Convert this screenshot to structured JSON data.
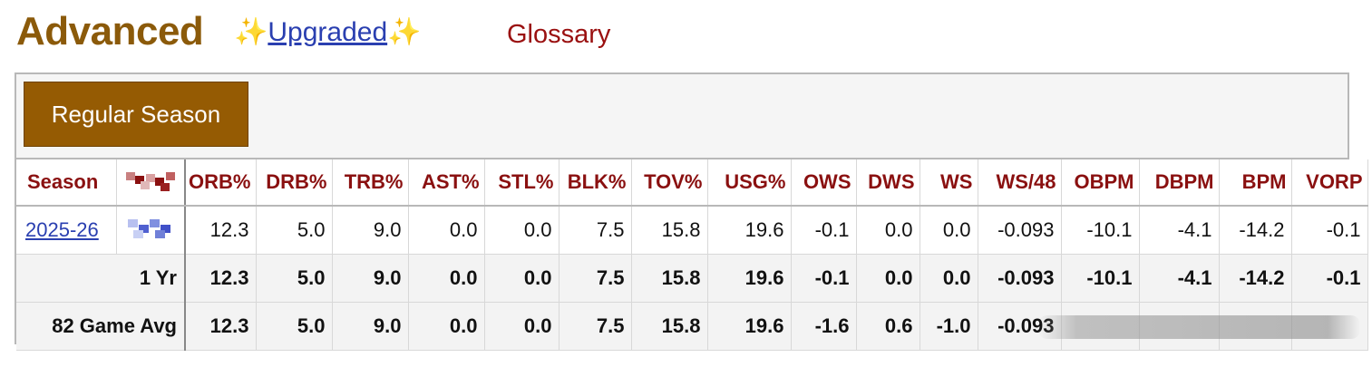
{
  "header": {
    "title": "Advanced",
    "spark_left": "✨",
    "upgraded_link": "Upgraded",
    "spark_right": "✨",
    "glossary": "Glossary"
  },
  "toolbar": {
    "regular_season_label": "Regular Season"
  },
  "table": {
    "columns": [
      "Season",
      "",
      "ORB%",
      "DRB%",
      "TRB%",
      "AST%",
      "STL%",
      "BLK%",
      "TOV%",
      "USG%",
      "OWS",
      "DWS",
      "WS",
      "WS/48",
      "OBPM",
      "DBPM",
      "BPM",
      "VORP"
    ],
    "rows": [
      {
        "season": "2025-26",
        "age": "",
        "values": [
          "12.3",
          "5.0",
          "9.0",
          "0.0",
          "0.0",
          "7.5",
          "15.8",
          "19.6",
          "-0.1",
          "0.0",
          "0.0",
          "-0.093",
          "-10.1",
          "-4.1",
          "-14.2",
          "-0.1"
        ]
      }
    ],
    "footer": [
      {
        "label": "1 Yr",
        "values": [
          "12.3",
          "5.0",
          "9.0",
          "0.0",
          "0.0",
          "7.5",
          "15.8",
          "19.6",
          "-0.1",
          "0.0",
          "0.0",
          "-0.093",
          "-10.1",
          "-4.1",
          "-14.2",
          "-0.1"
        ]
      },
      {
        "label": "82 Game Avg",
        "values": [
          "12.3",
          "5.0",
          "9.0",
          "0.0",
          "0.0",
          "7.5",
          "15.8",
          "19.6",
          "-1.6",
          "0.6",
          "-1.0",
          "-0.093",
          "",
          "",
          "",
          ""
        ]
      }
    ]
  },
  "colors": {
    "title": "#8b5a0a",
    "header_text": "#8a1010",
    "button_bg": "#955b03",
    "link": "#2a3fb0"
  }
}
